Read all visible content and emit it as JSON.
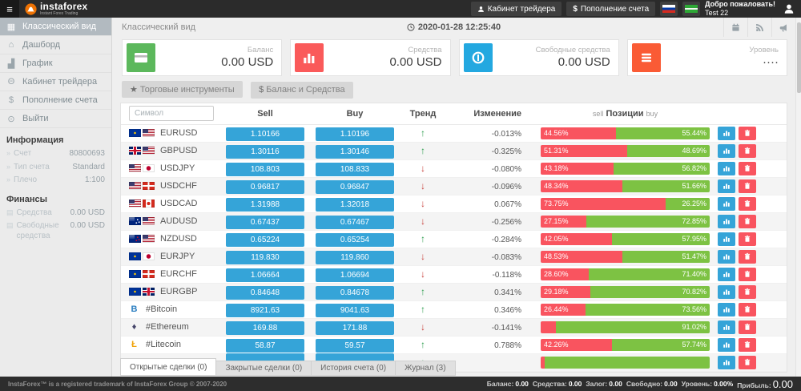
{
  "topbar": {
    "brand": "instaforex",
    "tagline": "Instant Forex Trading",
    "cabinet_button": "Кабинет трейдера",
    "deposit_button": "Пополнение счета",
    "welcome_line1": "Добро пожаловать!",
    "welcome_line2": "Test 22"
  },
  "sidebar": {
    "menu": [
      {
        "label": "Классический вид",
        "icon": "table-icon",
        "active": true
      },
      {
        "label": "Дашборд",
        "icon": "dashboard-icon",
        "active": false
      },
      {
        "label": "График",
        "icon": "bar-chart-icon",
        "active": false
      },
      {
        "label": "Кабинет трейдера",
        "icon": "user-icon",
        "active": false
      },
      {
        "label": "Пополнение счета",
        "icon": "dollar-icon",
        "active": false
      },
      {
        "label": "Выйти",
        "icon": "power-icon",
        "active": false
      }
    ],
    "info_title": "Информация",
    "info": [
      {
        "label": "Счет",
        "value": "80800693"
      },
      {
        "label": "Тип счета",
        "value": "Standard"
      },
      {
        "label": "Плечо",
        "value": "1:100"
      }
    ],
    "finance_title": "Финансы",
    "finance": [
      {
        "label": "Средства",
        "value": "0.00 USD"
      },
      {
        "label": "Свободные средства",
        "value": "0.00 USD"
      }
    ]
  },
  "header": {
    "title": "Классический вид",
    "datetime": "2020-01-28 12:25:40"
  },
  "cards": [
    {
      "label": "Баланс",
      "value": "0.00 USD",
      "icon": "credit-card-icon",
      "color": "#5cb85c"
    },
    {
      "label": "Средства",
      "value": "0.00 USD",
      "icon": "bar-chart-icon",
      "color": "#fa5a5a"
    },
    {
      "label": "Свободные средства",
      "value": "0.00 USD",
      "icon": "coin-icon",
      "color": "#23a8e0"
    },
    {
      "label": "Уровень",
      "value": "····",
      "icon": "list-icon",
      "color": "#fa5b35"
    }
  ],
  "toolbar": {
    "instruments_button": "Торговые инструменты",
    "balance_button": "Баланс и Средства"
  },
  "table": {
    "symbol_placeholder": "Символ",
    "headers": {
      "sell": "Sell",
      "buy": "Buy",
      "trend": "Тренд",
      "change": "Изменение",
      "positions_sell": "sell",
      "positions": "Позиции",
      "positions_buy": "buy"
    },
    "rows": [
      {
        "symbol": "EURUSD",
        "flags": [
          "eu",
          "us"
        ],
        "sell": "1.10166",
        "buy": "1.10196",
        "trend": "up",
        "change": "-0.013%",
        "sell_pct": 44.56,
        "buy_pct": 55.44,
        "sell_label": "44.56%",
        "buy_label": "55.44%"
      },
      {
        "symbol": "GBPUSD",
        "flags": [
          "gb",
          "us"
        ],
        "sell": "1.30116",
        "buy": "1.30146",
        "trend": "up",
        "change": "-0.325%",
        "sell_pct": 51.31,
        "buy_pct": 48.69,
        "sell_label": "51.31%",
        "buy_label": "48.69%"
      },
      {
        "symbol": "USDJPY",
        "flags": [
          "us",
          "jp"
        ],
        "sell": "108.803",
        "buy": "108.833",
        "trend": "down",
        "change": "-0.080%",
        "sell_pct": 43.18,
        "buy_pct": 56.82,
        "sell_label": "43.18%",
        "buy_label": "56.82%"
      },
      {
        "symbol": "USDCHF",
        "flags": [
          "us",
          "ch"
        ],
        "sell": "0.96817",
        "buy": "0.96847",
        "trend": "down",
        "change": "-0.096%",
        "sell_pct": 48.34,
        "buy_pct": 51.66,
        "sell_label": "48.34%",
        "buy_label": "51.66%"
      },
      {
        "symbol": "USDCAD",
        "flags": [
          "us",
          "ca"
        ],
        "sell": "1.31988",
        "buy": "1.32018",
        "trend": "down",
        "change": "0.067%",
        "sell_pct": 73.75,
        "buy_pct": 26.25,
        "sell_label": "73.75%",
        "buy_label": "26.25%"
      },
      {
        "symbol": "AUDUSD",
        "flags": [
          "au",
          "us"
        ],
        "sell": "0.67437",
        "buy": "0.67467",
        "trend": "down",
        "change": "-0.256%",
        "sell_pct": 27.15,
        "buy_pct": 72.85,
        "sell_label": "27.15%",
        "buy_label": "72.85%"
      },
      {
        "symbol": "NZDUSD",
        "flags": [
          "nz",
          "us"
        ],
        "sell": "0.65224",
        "buy": "0.65254",
        "trend": "up",
        "change": "-0.284%",
        "sell_pct": 42.05,
        "buy_pct": 57.95,
        "sell_label": "42.05%",
        "buy_label": "57.95%"
      },
      {
        "symbol": "EURJPY",
        "flags": [
          "eu",
          "jp"
        ],
        "sell": "119.830",
        "buy": "119.860",
        "trend": "down",
        "change": "-0.083%",
        "sell_pct": 48.53,
        "buy_pct": 51.47,
        "sell_label": "48.53%",
        "buy_label": "51.47%"
      },
      {
        "symbol": "EURCHF",
        "flags": [
          "eu",
          "ch"
        ],
        "sell": "1.06664",
        "buy": "1.06694",
        "trend": "down",
        "change": "-0.118%",
        "sell_pct": 28.6,
        "buy_pct": 71.4,
        "sell_label": "28.60%",
        "buy_label": "71.40%"
      },
      {
        "symbol": "EURGBP",
        "flags": [
          "eu",
          "gb"
        ],
        "sell": "0.84648",
        "buy": "0.84678",
        "trend": "up",
        "change": "0.341%",
        "sell_pct": 29.18,
        "buy_pct": 70.82,
        "sell_label": "29.18%",
        "buy_label": "70.82%"
      },
      {
        "symbol": "#Bitcoin",
        "crypto": "bitcoin",
        "sell": "8921.63",
        "buy": "9041.63",
        "trend": "up",
        "change": "0.346%",
        "sell_pct": 26.44,
        "buy_pct": 73.56,
        "sell_label": "26.44%",
        "buy_label": "73.56%"
      },
      {
        "symbol": "#Ethereum",
        "crypto": "ethereum",
        "sell": "169.88",
        "buy": "171.88",
        "trend": "down",
        "change": "-0.141%",
        "sell_pct": 8.98,
        "buy_pct": 91.02,
        "sell_label": "",
        "buy_label": "91.02%"
      },
      {
        "symbol": "#Litecoin",
        "crypto": "litecoin",
        "sell": "58.87",
        "buy": "59.57",
        "trend": "up",
        "change": "0.788%",
        "sell_pct": 42.26,
        "buy_pct": 57.74,
        "sell_label": "42.26%",
        "buy_label": "57.74%"
      },
      {
        "symbol": "",
        "sell": "",
        "buy": "",
        "trend": "up",
        "change": "",
        "sell_pct": 2.5,
        "buy_pct": 97.5,
        "sell_label": "",
        "buy_label": ""
      }
    ]
  },
  "tabs": [
    {
      "label": "Открытые сделки (0)",
      "active": true
    },
    {
      "label": "Закрытые сделки (0)",
      "active": false
    },
    {
      "label": "История счета (0)",
      "active": false
    },
    {
      "label": "Журнал (3)",
      "active": false
    }
  ],
  "footer": {
    "copyright": "InstaForex™ is a registered trademark of InstaForex Group © 2007-2020",
    "stats": [
      {
        "label": "Баланс:",
        "value": "0.00"
      },
      {
        "label": "Средства:",
        "value": "0.00"
      },
      {
        "label": "Залог:",
        "value": "0.00"
      },
      {
        "label": "Свободно:",
        "value": "0.00"
      },
      {
        "label": "Уровень:",
        "value": "0.00%"
      },
      {
        "label": "Прибыль:",
        "value": "0.00",
        "big": true
      }
    ]
  }
}
